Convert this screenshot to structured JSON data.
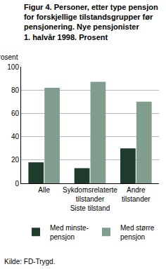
{
  "chart_data": {
    "type": "bar",
    "title": "Figur 4. Personer, etter type pensjon\nfor forskjellige tilstandsgrupper før\npensjonering. Nye pensjonister\n1. halvår 1998. Prosent",
    "y_label": "Prosent",
    "x_label": "Siste tilstand",
    "source": "Kilde: FD-Trygd.",
    "categories": [
      "Alle",
      "Sykdomsrelaterte\ntilstander",
      "Andre\ntilstander"
    ],
    "series": [
      {
        "name": "Med minste-\npensjon",
        "color": "#1f3b2c",
        "values": [
          18,
          13,
          30
        ]
      },
      {
        "name": "Med større\npensjon",
        "color": "#809d8d",
        "values": [
          82,
          87,
          70
        ]
      }
    ],
    "ylim": [
      0,
      100
    ],
    "yticks": [
      0,
      20,
      40,
      60,
      80,
      100
    ],
    "grid": true,
    "legend": "bottom"
  }
}
